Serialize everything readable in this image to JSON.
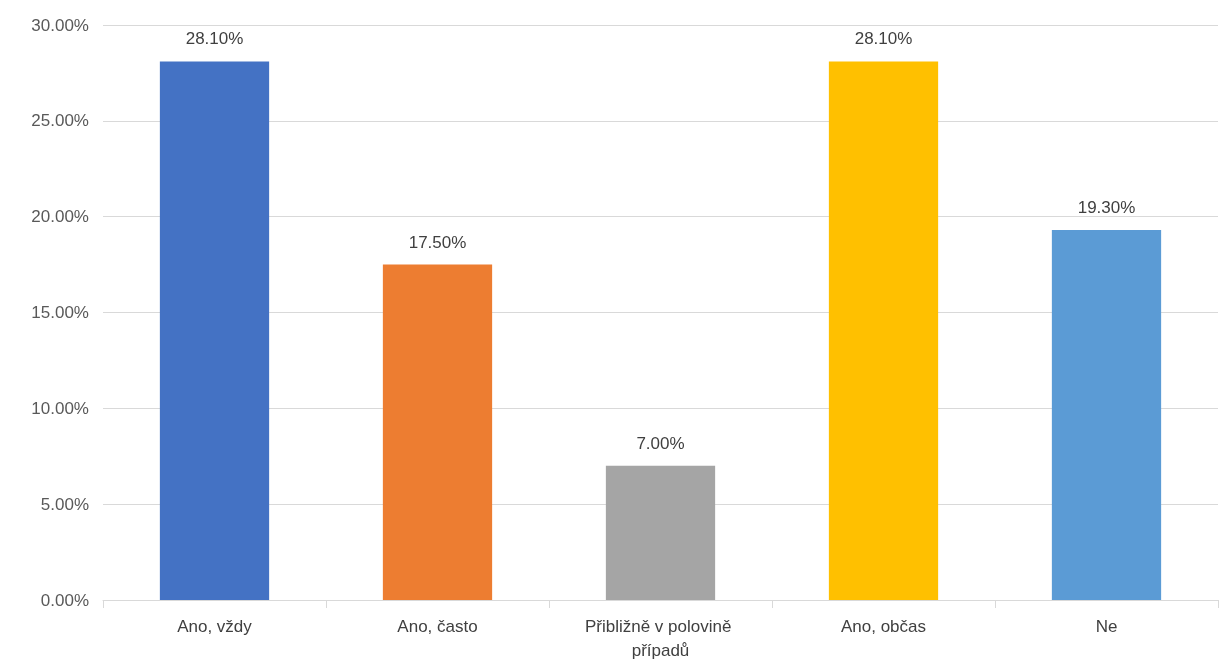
{
  "chart_data": {
    "type": "bar",
    "categories": [
      "Ano, vždy",
      "Ano, často",
      "Přibližně v polovině případů",
      "Ano, občas",
      "Ne"
    ],
    "values": [
      28.1,
      17.5,
      7.0,
      28.1,
      19.3
    ],
    "colors": [
      "#4472c4",
      "#ed7d31",
      "#a5a5a5",
      "#ffc000",
      "#5b9bd5"
    ],
    "value_labels": [
      "28.10%",
      "17.50%",
      "7.00%",
      "28.10%",
      "19.30%"
    ],
    "ylim": [
      0,
      30
    ],
    "yticks": [
      {
        "value": 0,
        "label": "0.00%"
      },
      {
        "value": 5,
        "label": "5.00%"
      },
      {
        "value": 10,
        "label": "10.00%"
      },
      {
        "value": 15,
        "label": "15.00%"
      },
      {
        "value": 20,
        "label": "20.00%"
      },
      {
        "value": 25,
        "label": "25.00%"
      },
      {
        "value": 30,
        "label": "30.00%"
      }
    ],
    "grid": "y"
  }
}
